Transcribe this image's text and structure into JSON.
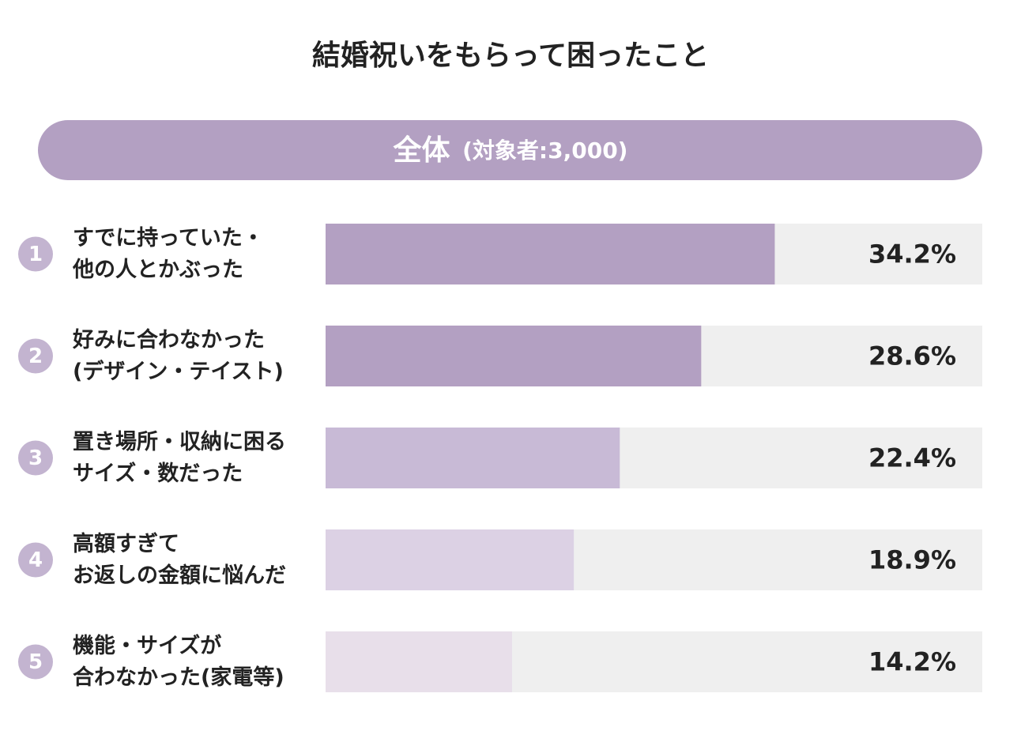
{
  "chart_data": {
    "type": "bar",
    "title": "結婚祝いをもらって困ったこと",
    "subtitle": "全体",
    "subtitle_note": "(対象者:3,000)",
    "ranks": [
      1,
      2,
      3,
      4,
      5
    ],
    "categories": [
      [
        "すでに持っていた・",
        "他の人とかぶった"
      ],
      [
        "好みに合わなかった",
        "(デザイン・テイスト)"
      ],
      [
        "置き場所・収納に困る",
        "サイズ・数だった"
      ],
      [
        "高額すぎて",
        "お返しの金額に悩んだ"
      ],
      [
        "機能・サイズが",
        "合わなかった(家電等)"
      ]
    ],
    "values": [
      34.2,
      28.6,
      22.4,
      18.9,
      14.2
    ],
    "value_labels": [
      "34.2%",
      "28.6%",
      "22.4%",
      "18.9%",
      "14.2%"
    ],
    "colors": [
      "#b3a0c2",
      "#b3a0c2",
      "#c8bad6",
      "#dcd1e4",
      "#e8dfea"
    ],
    "track_color": "#efefef",
    "xlim": [
      0,
      50
    ]
  }
}
